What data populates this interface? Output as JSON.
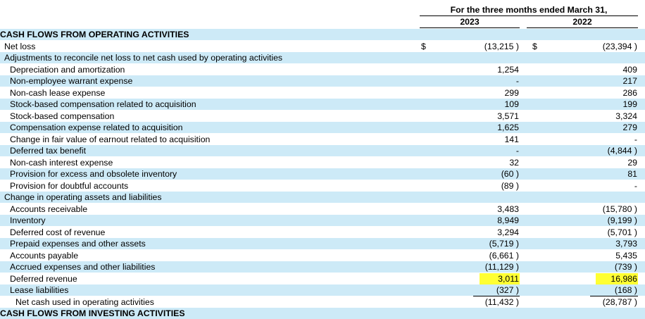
{
  "header": {
    "period": "For the three months ended March 31,",
    "col_2023": "2023",
    "col_2022": "2022"
  },
  "currency_symbol": "$",
  "rows": [
    {
      "label": "CASH FLOWS FROM OPERATING ACTIVITIES",
      "v2023": "",
      "v2022": "",
      "bold": true,
      "indent": 0,
      "shaded": true
    },
    {
      "label": "Net loss",
      "v2023": "(13,215 )",
      "v2022": "(23,394 )",
      "indent": 1,
      "currency": true
    },
    {
      "label": "Adjustments to reconcile net loss to net cash used by operating activities",
      "v2023": "",
      "v2022": "",
      "indent": 1,
      "shaded": true
    },
    {
      "label": "Depreciation and amortization",
      "v2023": "1,254",
      "v2022": "409",
      "indent": 2
    },
    {
      "label": "Non-employee warrant expense",
      "v2023": "-",
      "v2022": "217",
      "indent": 2,
      "shaded": true
    },
    {
      "label": "Non-cash lease expense",
      "v2023": "299",
      "v2022": "286",
      "indent": 2
    },
    {
      "label": "Stock-based compensation related to acquisition",
      "v2023": "109",
      "v2022": "199",
      "indent": 2,
      "shaded": true
    },
    {
      "label": "Stock-based compensation",
      "v2023": "3,571",
      "v2022": "3,324",
      "indent": 2
    },
    {
      "label": "Compensation expense related to acquisition",
      "v2023": "1,625",
      "v2022": "279",
      "indent": 2,
      "shaded": true
    },
    {
      "label": "Change in fair value of earnout related to acquisition",
      "v2023": "141",
      "v2022": "-",
      "indent": 2
    },
    {
      "label": "Deferred tax benefit",
      "v2023": "-",
      "v2022": "(4,844 )",
      "indent": 2,
      "shaded": true
    },
    {
      "label": "Non-cash interest expense",
      "v2023": "32",
      "v2022": "29",
      "indent": 2
    },
    {
      "label": "Provision for excess and obsolete inventory",
      "v2023": "(60 )",
      "v2022": "81",
      "indent": 2,
      "shaded": true
    },
    {
      "label": "Provision for doubtful accounts",
      "v2023": "(89 )",
      "v2022": "-",
      "indent": 2
    },
    {
      "label": "Change in operating assets and liabilities",
      "v2023": "",
      "v2022": "",
      "indent": 1,
      "shaded": true
    },
    {
      "label": "Accounts receivable",
      "v2023": "3,483",
      "v2022": "(15,780 )",
      "indent": 2
    },
    {
      "label": "Inventory",
      "v2023": "8,949",
      "v2022": "(9,199 )",
      "indent": 2,
      "shaded": true
    },
    {
      "label": "Deferred cost of revenue",
      "v2023": "3,294",
      "v2022": "(5,701 )",
      "indent": 2
    },
    {
      "label": "Prepaid expenses and other assets",
      "v2023": "(5,719 )",
      "v2022": "3,793",
      "indent": 2,
      "shaded": true
    },
    {
      "label": "Accounts payable",
      "v2023": "(6,661 )",
      "v2022": "5,435",
      "indent": 2
    },
    {
      "label": "Accrued expenses and other liabilities",
      "v2023": "(11,129 )",
      "v2022": "(739 )",
      "indent": 2,
      "shaded": true
    },
    {
      "label": "Deferred revenue",
      "v2023": "3,011",
      "v2022": "16,986",
      "indent": 2,
      "highlight": true
    },
    {
      "label": "Lease liabilities",
      "v2023": "(327 )",
      "v2022": "(168 )",
      "indent": 2,
      "shaded": true,
      "underline": true
    },
    {
      "label": "Net cash used in operating activities",
      "v2023": "(11,432 )",
      "v2022": "(28,787 )",
      "indent": 3,
      "underline": true
    },
    {
      "label": "CASH FLOWS FROM INVESTING ACTIVITIES",
      "v2023": "",
      "v2022": "",
      "bold": true,
      "indent": 0,
      "shaded": true
    }
  ],
  "colors": {
    "shade": "#cdeaf7",
    "highlight": "#ffff33"
  }
}
